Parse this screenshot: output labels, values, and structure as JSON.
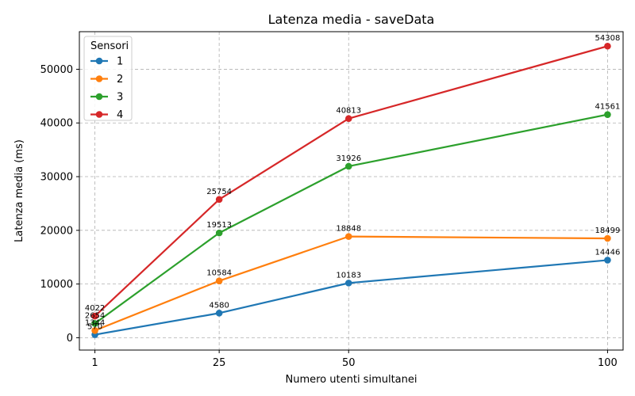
{
  "chart_data": {
    "type": "line",
    "title": "Latenza media - saveData",
    "xlabel": "Numero utenti simultanei",
    "ylabel": "Latenza media (ms)",
    "x": [
      1,
      25,
      50,
      100
    ],
    "x_tick_labels": [
      "1",
      "25",
      "50",
      "100"
    ],
    "xlim": [
      -2,
      103
    ],
    "ylim": [
      -2300,
      57000
    ],
    "y_ticks": [
      0,
      10000,
      20000,
      30000,
      40000,
      50000
    ],
    "y_tick_labels": [
      "0",
      "10000",
      "20000",
      "30000",
      "40000",
      "50000"
    ],
    "grid": true,
    "legend": {
      "title": "Sensori",
      "placement": "top-left"
    },
    "series": [
      {
        "name": "1",
        "color": "#1f77b4",
        "values": [
          570,
          4580,
          10183,
          14446
        ],
        "labels": [
          "570",
          "4580",
          "10183",
          "14446"
        ]
      },
      {
        "name": "2",
        "color": "#ff7f0e",
        "values": [
          1344,
          10584,
          18848,
          18499
        ],
        "labels": [
          "1344",
          "10584",
          "18848",
          "18499"
        ]
      },
      {
        "name": "3",
        "color": "#2ca02c",
        "values": [
          2654,
          19513,
          31926,
          41561
        ],
        "labels": [
          "2654",
          "19513",
          "31926",
          "41561"
        ]
      },
      {
        "name": "4",
        "color": "#d62728",
        "values": [
          4022,
          25754,
          40813,
          54308
        ],
        "labels": [
          "4022",
          "25754",
          "40813",
          "54308"
        ]
      }
    ]
  }
}
